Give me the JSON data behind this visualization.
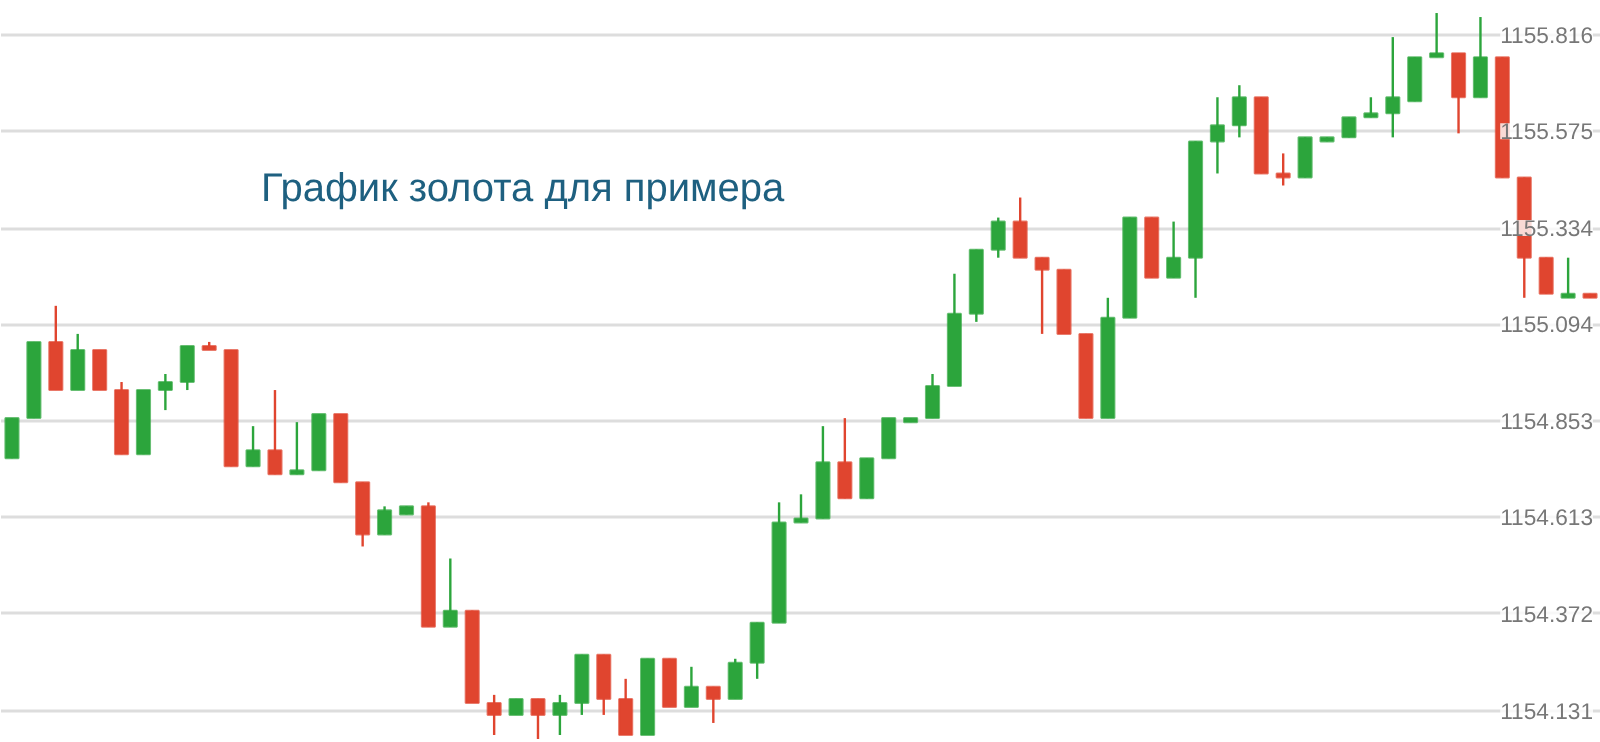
{
  "chart_data": {
    "type": "candlestick",
    "annotations": [
      "График золота для примера"
    ],
    "categories": [
      null,
      null,
      null,
      null,
      null,
      null,
      null,
      null,
      null,
      null,
      null,
      null,
      null,
      null,
      null,
      null,
      null,
      null,
      null,
      null,
      null,
      null,
      null,
      null,
      null,
      null,
      null,
      null,
      null,
      null,
      null,
      null,
      null,
      null,
      null,
      null,
      null,
      null,
      null,
      null,
      null,
      null,
      null,
      null,
      null,
      null,
      null,
      null,
      null,
      null,
      null,
      null,
      null,
      null,
      null,
      null,
      null,
      null,
      null,
      null,
      null,
      null,
      null,
      null,
      null,
      null,
      null,
      null,
      null,
      null,
      null,
      null,
      null
    ],
    "ohlc": [
      [
        1154.76,
        1154.86,
        1154.76,
        1154.86
      ],
      [
        1154.86,
        1155.05,
        1154.86,
        1155.05
      ],
      [
        1155.05,
        1155.14,
        1154.93,
        1154.93
      ],
      [
        1154.93,
        1155.07,
        1154.93,
        1155.03
      ],
      [
        1155.03,
        1155.03,
        1154.93,
        1154.93
      ],
      [
        1154.93,
        1154.95,
        1154.77,
        1154.77
      ],
      [
        1154.77,
        1154.93,
        1154.77,
        1154.93
      ],
      [
        1154.93,
        1154.97,
        1154.88,
        1154.95
      ],
      [
        1154.95,
        1155.04,
        1154.93,
        1155.04
      ],
      [
        1155.04,
        1155.05,
        1155.03,
        1155.03
      ],
      [
        1155.03,
        1155.03,
        1154.74,
        1154.74
      ],
      [
        1154.74,
        1154.84,
        1154.74,
        1154.78
      ],
      [
        1154.78,
        1154.93,
        1154.72,
        1154.72
      ],
      [
        1154.72,
        1154.85,
        1154.72,
        1154.73
      ],
      [
        1154.73,
        1154.87,
        1154.73,
        1154.87
      ],
      [
        1154.87,
        1154.87,
        1154.7,
        1154.7
      ],
      [
        1154.7,
        1154.7,
        1154.54,
        1154.57
      ],
      [
        1154.57,
        1154.64,
        1154.57,
        1154.63
      ],
      [
        1154.62,
        1154.64,
        1154.62,
        1154.64
      ],
      [
        1154.64,
        1154.65,
        1154.34,
        1154.34
      ],
      [
        1154.34,
        1154.51,
        1154.34,
        1154.38
      ],
      [
        1154.38,
        1154.38,
        1154.15,
        1154.15
      ],
      [
        1154.15,
        1154.17,
        1154.07,
        1154.12
      ],
      [
        1154.12,
        1154.16,
        1154.12,
        1154.16
      ],
      [
        1154.16,
        1154.16,
        1154.06,
        1154.12
      ],
      [
        1154.12,
        1154.17,
        1154.07,
        1154.15
      ],
      [
        1154.15,
        1154.27,
        1154.12,
        1154.27
      ],
      [
        1154.27,
        1154.27,
        1154.12,
        1154.16
      ],
      [
        1154.16,
        1154.21,
        1154.07,
        1154.07
      ],
      [
        1154.07,
        1154.26,
        1154.07,
        1154.26
      ],
      [
        1154.26,
        1154.26,
        1154.14,
        1154.14
      ],
      [
        1154.14,
        1154.24,
        1154.14,
        1154.19
      ],
      [
        1154.19,
        1154.19,
        1154.1,
        1154.16
      ],
      [
        1154.16,
        1154.26,
        1154.16,
        1154.25
      ],
      [
        1154.25,
        1154.35,
        1154.21,
        1154.35
      ],
      [
        1154.35,
        1154.65,
        1154.35,
        1154.6
      ],
      [
        1154.6,
        1154.67,
        1154.6,
        1154.61
      ],
      [
        1154.61,
        1154.84,
        1154.61,
        1154.75
      ],
      [
        1154.75,
        1154.86,
        1154.66,
        1154.66
      ],
      [
        1154.66,
        1154.76,
        1154.66,
        1154.76
      ],
      [
        1154.76,
        1154.86,
        1154.76,
        1154.86
      ],
      [
        1154.85,
        1154.86,
        1154.85,
        1154.86
      ],
      [
        1154.86,
        1154.97,
        1154.86,
        1154.94
      ],
      [
        1154.94,
        1155.22,
        1154.94,
        1155.12
      ],
      [
        1155.12,
        1155.28,
        1155.1,
        1155.28
      ],
      [
        1155.28,
        1155.36,
        1155.26,
        1155.35
      ],
      [
        1155.35,
        1155.41,
        1155.26,
        1155.26
      ],
      [
        1155.26,
        1155.26,
        1155.07,
        1155.23
      ],
      [
        1155.23,
        1155.23,
        1155.07,
        1155.07
      ],
      [
        1155.07,
        1155.07,
        1154.86,
        1154.86
      ],
      [
        1154.86,
        1155.16,
        1154.86,
        1155.11
      ],
      [
        1155.11,
        1155.36,
        1155.11,
        1155.36
      ],
      [
        1155.36,
        1155.36,
        1155.21,
        1155.21
      ],
      [
        1155.21,
        1155.35,
        1155.21,
        1155.26
      ],
      [
        1155.26,
        1155.55,
        1155.16,
        1155.55
      ],
      [
        1155.55,
        1155.66,
        1155.47,
        1155.59
      ],
      [
        1155.59,
        1155.69,
        1155.56,
        1155.66
      ],
      [
        1155.66,
        1155.66,
        1155.47,
        1155.47
      ],
      [
        1155.47,
        1155.52,
        1155.44,
        1155.46
      ],
      [
        1155.46,
        1155.56,
        1155.46,
        1155.56
      ],
      [
        1155.55,
        1155.56,
        1155.55,
        1155.56
      ],
      [
        1155.56,
        1155.61,
        1155.56,
        1155.61
      ],
      [
        1155.61,
        1155.66,
        1155.61,
        1155.62
      ],
      [
        1155.62,
        1155.81,
        1155.56,
        1155.66
      ],
      [
        1155.65,
        1155.76,
        1155.65,
        1155.76
      ],
      [
        1155.76,
        1155.87,
        1155.76,
        1155.77
      ],
      [
        1155.77,
        1155.77,
        1155.57,
        1155.66
      ],
      [
        1155.66,
        1155.86,
        1155.66,
        1155.76
      ],
      [
        1155.76,
        1155.76,
        1155.46,
        1155.46
      ],
      [
        1155.46,
        1155.46,
        1155.16,
        1155.26
      ],
      [
        1155.26,
        1155.26,
        1155.17,
        1155.17
      ],
      [
        1155.16,
        1155.26,
        1155.16,
        1155.17
      ],
      [
        1155.17,
        1155.17,
        1155.16,
        1155.16
      ]
    ],
    "colors": [
      "#2ca53c",
      "#2ca53c",
      "#e0452f",
      "#2ca53c",
      "#e0452f",
      "#e0452f",
      "#2ca53c",
      "#2ca53c",
      "#2ca53c",
      "#e0452f",
      "#e0452f",
      "#2ca53c",
      "#e0452f",
      "#2ca53c",
      "#2ca53c",
      "#e0452f",
      "#e0452f",
      "#2ca53c",
      "#2ca53c",
      "#e0452f",
      "#2ca53c",
      "#e0452f",
      "#e0452f",
      "#2ca53c",
      "#e0452f",
      "#2ca53c",
      "#2ca53c",
      "#e0452f",
      "#e0452f",
      "#2ca53c",
      "#e0452f",
      "#2ca53c",
      "#e0452f",
      "#2ca53c",
      "#2ca53c",
      "#2ca53c",
      "#2ca53c",
      "#2ca53c",
      "#e0452f",
      "#2ca53c",
      "#2ca53c",
      "#2ca53c",
      "#2ca53c",
      "#2ca53c",
      "#2ca53c",
      "#2ca53c",
      "#e0452f",
      "#e0452f",
      "#e0452f",
      "#e0452f",
      "#2ca53c",
      "#2ca53c",
      "#e0452f",
      "#2ca53c",
      "#2ca53c",
      "#2ca53c",
      "#2ca53c",
      "#e0452f",
      "#e0452f",
      "#2ca53c",
      "#2ca53c",
      "#2ca53c",
      "#2ca53c",
      "#2ca53c",
      "#2ca53c",
      "#2ca53c",
      "#e0452f",
      "#2ca53c",
      "#e0452f",
      "#e0452f",
      "#e0452f",
      "#2ca53c",
      "#e0452f"
    ],
    "ylim": [
      1154.05,
      1155.9
    ],
    "yticks": [
      1154.131,
      1154.372,
      1154.613,
      1154.853,
      1155.094,
      1155.334,
      1155.575,
      1155.816
    ],
    "grid": "y",
    "tick_labels": "y"
  }
}
